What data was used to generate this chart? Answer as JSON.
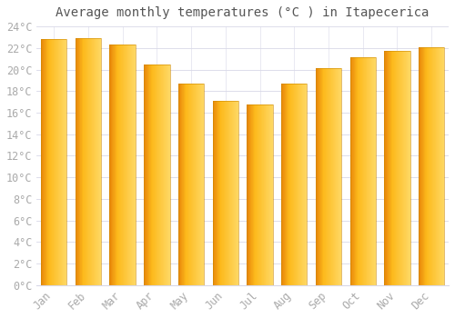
{
  "title": "Average monthly temperatures (°C ) in Itapecerica",
  "months": [
    "Jan",
    "Feb",
    "Mar",
    "Apr",
    "May",
    "Jun",
    "Jul",
    "Aug",
    "Sep",
    "Oct",
    "Nov",
    "Dec"
  ],
  "values": [
    22.8,
    22.9,
    22.3,
    20.5,
    18.7,
    17.1,
    16.8,
    18.7,
    20.1,
    21.1,
    21.7,
    22.1
  ],
  "bar_color_left": "#E8860A",
  "bar_color_center": "#FDBA1C",
  "bar_color_right": "#FFD966",
  "background_color": "#FFFFFF",
  "grid_color": "#D8D8E8",
  "text_color": "#AAAAAA",
  "title_color": "#555555",
  "ylim": [
    0,
    24
  ],
  "ytick_step": 2,
  "title_fontsize": 10,
  "tick_fontsize": 8.5,
  "bar_width": 0.75
}
